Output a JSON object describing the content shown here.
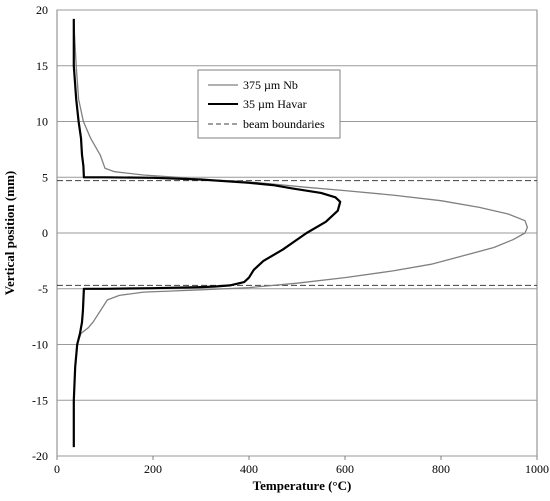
{
  "chart_data": {
    "type": "line",
    "xlabel": "Temperature  (°C)",
    "ylabel": "Vertical position (mm)",
    "xlim": [
      0,
      1000
    ],
    "ylim": [
      -20,
      20
    ],
    "x_ticks": [
      "0",
      "200",
      "400",
      "600",
      "800",
      "1000"
    ],
    "y_ticks": [
      "20",
      "15",
      "10",
      "5",
      "0",
      "-5",
      "-10",
      "-15",
      "-20"
    ],
    "grid": "horizontal",
    "legend_position": "top-center",
    "series": [
      {
        "name": "375 µm Nb",
        "color": "#808080",
        "style": "solid",
        "points": [
          [
            35,
            -19.2
          ],
          [
            35,
            -15
          ],
          [
            38,
            -12
          ],
          [
            42,
            -10
          ],
          [
            50,
            -9
          ],
          [
            65,
            -8.5
          ],
          [
            75,
            -8
          ],
          [
            90,
            -7
          ],
          [
            105,
            -6
          ],
          [
            130,
            -5.6
          ],
          [
            180,
            -5.3
          ],
          [
            300,
            -5.1
          ],
          [
            400,
            -4.9
          ],
          [
            500,
            -4.5
          ],
          [
            600,
            -4.0
          ],
          [
            700,
            -3.4
          ],
          [
            780,
            -2.8
          ],
          [
            850,
            -2.0
          ],
          [
            910,
            -1.3
          ],
          [
            950,
            -0.6
          ],
          [
            975,
            0.0
          ],
          [
            980,
            0.5
          ],
          [
            975,
            1.1
          ],
          [
            940,
            1.7
          ],
          [
            880,
            2.3
          ],
          [
            800,
            2.9
          ],
          [
            700,
            3.4
          ],
          [
            600,
            3.8
          ],
          [
            520,
            4.1
          ],
          [
            460,
            4.35
          ],
          [
            420,
            4.5
          ],
          [
            380,
            4.65
          ],
          [
            300,
            4.8
          ],
          [
            250,
            5.0
          ],
          [
            180,
            5.2
          ],
          [
            120,
            5.5
          ],
          [
            100,
            5.8
          ],
          [
            90,
            7.0
          ],
          [
            70,
            8.5
          ],
          [
            55,
            10.0
          ],
          [
            45,
            12.0
          ],
          [
            40,
            15.0
          ],
          [
            35,
            19.0
          ]
        ]
      },
      {
        "name": "35 µm Havar",
        "color": "#000000",
        "style": "solid",
        "points": [
          [
            35,
            -19.2
          ],
          [
            35,
            -15
          ],
          [
            38,
            -12
          ],
          [
            42,
            -10
          ],
          [
            48,
            -9
          ],
          [
            52,
            -8
          ],
          [
            54,
            -7
          ],
          [
            55,
            -6
          ],
          [
            56,
            -5.0
          ],
          [
            100,
            -5.0
          ],
          [
            200,
            -4.95
          ],
          [
            300,
            -4.85
          ],
          [
            330,
            -4.8
          ],
          [
            360,
            -4.7
          ],
          [
            390,
            -4.4
          ],
          [
            400,
            -4.0
          ],
          [
            410,
            -3.3
          ],
          [
            430,
            -2.5
          ],
          [
            470,
            -1.5
          ],
          [
            520,
            0.0
          ],
          [
            560,
            1.0
          ],
          [
            585,
            2.0
          ],
          [
            590,
            2.8
          ],
          [
            580,
            3.2
          ],
          [
            550,
            3.6
          ],
          [
            490,
            4.0
          ],
          [
            450,
            4.3
          ],
          [
            400,
            4.5
          ],
          [
            350,
            4.65
          ],
          [
            300,
            4.8
          ],
          [
            200,
            4.95
          ],
          [
            100,
            5.0
          ],
          [
            56,
            5.0
          ],
          [
            55,
            6.0
          ],
          [
            52,
            7.0
          ],
          [
            50,
            8.5
          ],
          [
            45,
            10.0
          ],
          [
            40,
            12.0
          ],
          [
            35,
            15.0
          ],
          [
            35,
            19.2
          ]
        ]
      },
      {
        "name": "beam boundaries",
        "color": "#404040",
        "style": "dashed",
        "lines_y": [
          4.7,
          -4.7
        ]
      }
    ]
  }
}
